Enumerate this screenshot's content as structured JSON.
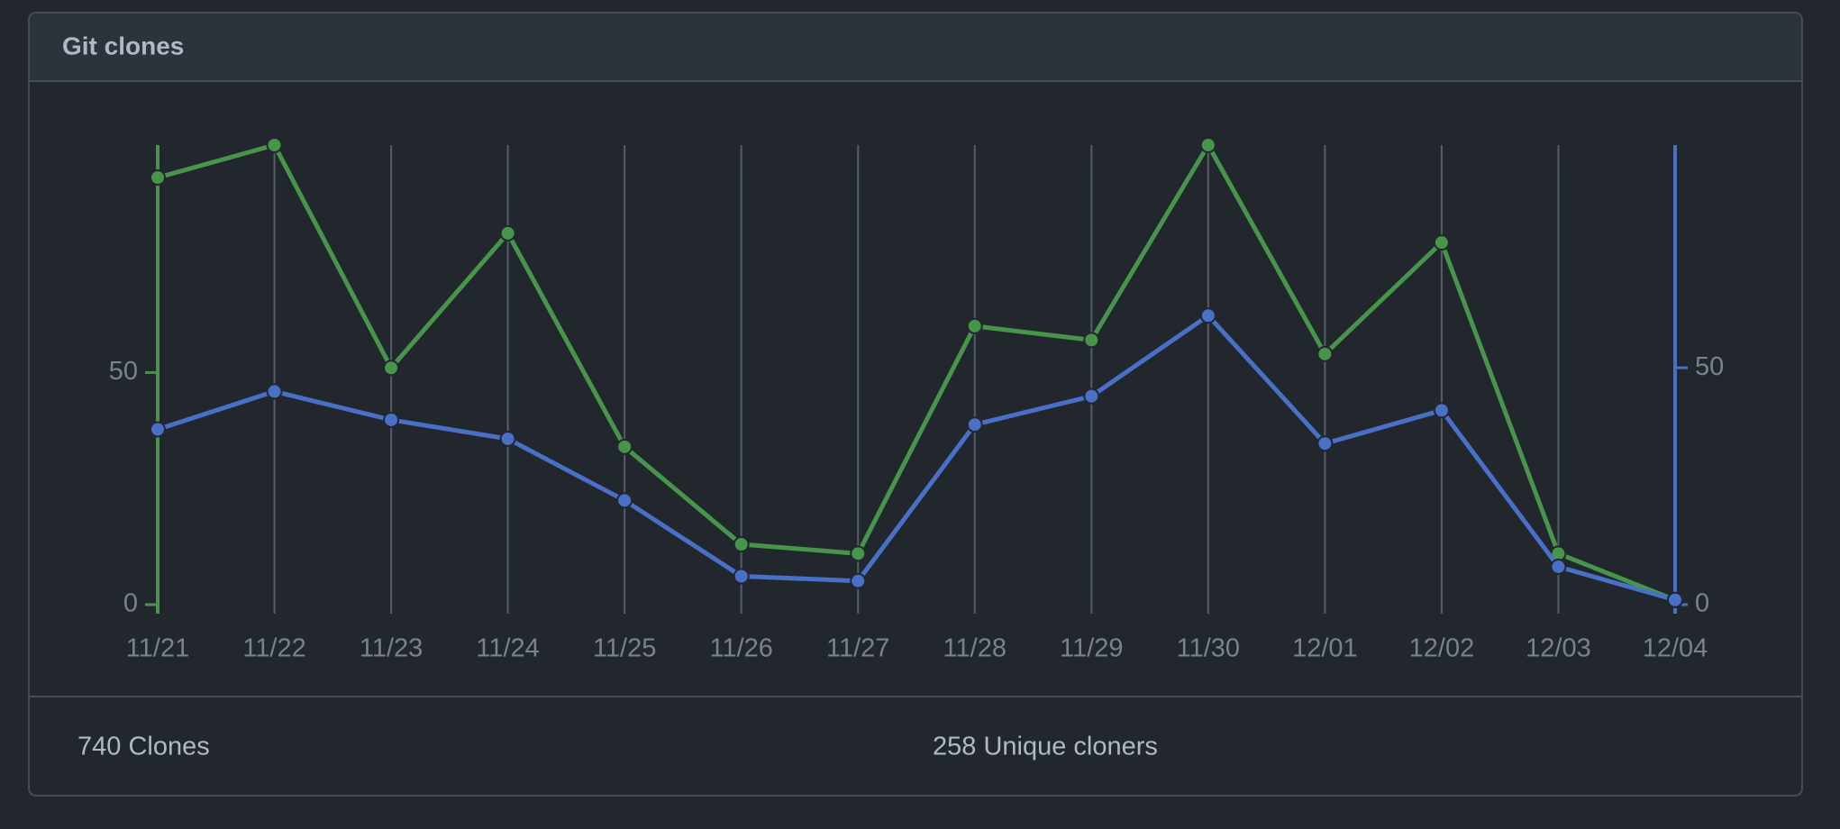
{
  "chart_data": {
    "type": "line",
    "title": "Git clones",
    "categories": [
      "11/21",
      "11/22",
      "11/23",
      "11/24",
      "11/25",
      "11/26",
      "11/27",
      "11/28",
      "11/29",
      "11/30",
      "12/01",
      "12/02",
      "12/03",
      "12/04"
    ],
    "series": [
      {
        "name": "Clones",
        "color": "#46954a",
        "values": [
          92,
          99,
          51,
          80,
          34,
          13,
          11,
          60,
          57,
          99,
          54,
          78,
          11,
          1
        ]
      },
      {
        "name": "Unique cloners",
        "color": "#4870c6",
        "axis": "y2",
        "values": [
          37,
          45,
          39,
          35,
          22,
          6,
          5,
          38,
          44,
          61,
          34,
          41,
          8,
          1
        ]
      }
    ],
    "ylim": [
      0,
      99
    ],
    "yticks": [
      0,
      50
    ],
    "y2lim": [
      0,
      97
    ],
    "y2ticks": [
      0,
      50
    ],
    "grid": true,
    "summary": [
      "740 Clones",
      "258 Unique cloners"
    ]
  }
}
